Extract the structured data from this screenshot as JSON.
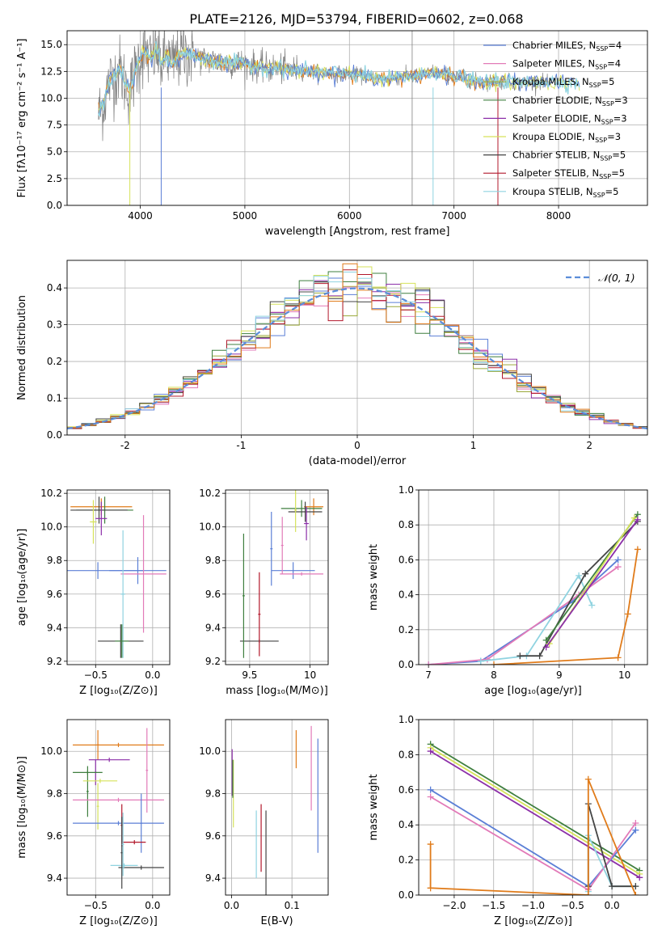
{
  "figure": {
    "title": "PLATE=2126, MJD=53794, FIBERID=0602, z=0.068"
  },
  "colors": {
    "Chabrier MILES": "#5b7fd6",
    "Salpeter MILES": "#e27ab8",
    "Kroupa MILES": "#9aa83a",
    "Chabrier ELODIE": "#3f7f3f",
    "Salpeter ELODIE": "#8c2fa8",
    "Kroupa ELODIE": "#d6e25a",
    "Chabrier STELIB": "#444444",
    "Salpeter STELIB": "#b2182b",
    "Kroupa STELIB": "#8fd3e0",
    "Orange": "#e07b1a",
    "Data": "#808080",
    "Normal": "#5b8dd9"
  },
  "chart_data": [
    {
      "id": "spectrum",
      "type": "line",
      "xlabel": "wavelength [Angstrom, rest frame]",
      "ylabel": "Flux [fλ10⁻¹⁷ erg cm⁻² s⁻¹ A⁻¹]",
      "xlim": [
        3300,
        8850
      ],
      "ylim": [
        0,
        16.3
      ],
      "xticks": [
        4000,
        5000,
        6000,
        7000,
        8000
      ],
      "yticks": [
        0.0,
        2.5,
        5.0,
        7.5,
        10.0,
        12.5,
        15.0
      ],
      "legend": "upper-right",
      "legend_entries": [
        {
          "label": "Chabrier MILES, N",
          "sub": "SSP",
          "tail": "=4",
          "color": "Chabrier MILES"
        },
        {
          "label": "Salpeter MILES, N",
          "sub": "SSP",
          "tail": "=4",
          "color": "Salpeter MILES"
        },
        {
          "label": "Kroupa MILES, N",
          "sub": "SSP",
          "tail": "=5",
          "color": "Kroupa MILES"
        },
        {
          "label": "Chabrier ELODIE, N",
          "sub": "SSP",
          "tail": "=3",
          "color": "Chabrier ELODIE"
        },
        {
          "label": "Salpeter ELODIE, N",
          "sub": "SSP",
          "tail": "=3",
          "color": "Salpeter ELODIE"
        },
        {
          "label": "Kroupa ELODIE, N",
          "sub": "SSP",
          "tail": "=3",
          "color": "Kroupa ELODIE"
        },
        {
          "label": "Chabrier STELIB, N",
          "sub": "SSP",
          "tail": "=5",
          "color": "Chabrier STELIB"
        },
        {
          "label": "Salpeter STELIB, N",
          "sub": "SSP",
          "tail": "=5",
          "color": "Salpeter STELIB"
        },
        {
          "label": "Kroupa STELIB, N",
          "sub": "SSP",
          "tail": "=5",
          "color": "Kroupa STELIB"
        }
      ],
      "model_x": [
        3600,
        3650,
        3700,
        3750,
        3800,
        3850,
        3900,
        3950,
        4000,
        4050,
        4100,
        4150,
        4200,
        4250,
        4300,
        4350,
        4400,
        4500,
        4600,
        4700,
        4800,
        4900,
        5000,
        5100,
        5200,
        5300,
        5400,
        5500,
        5600,
        5700,
        5800,
        5900,
        6000,
        6100,
        6200,
        6300,
        6400,
        6500,
        6600,
        6700,
        6800,
        6900,
        7000,
        7100,
        7200,
        7300,
        7400,
        7500,
        7600,
        7700,
        7800,
        7900,
        8000,
        8100,
        8200,
        8300,
        8400,
        8500,
        8600,
        8700,
        8800
      ],
      "model_y": [
        8.5,
        9.5,
        11.5,
        12.0,
        12.8,
        11.5,
        10.5,
        12.5,
        14.0,
        14.3,
        13.5,
        14.5,
        13.2,
        14.0,
        13.0,
        13.8,
        14.2,
        14.0,
        13.6,
        13.5,
        13.3,
        13.3,
        13.2,
        13.0,
        12.8,
        12.8,
        12.7,
        12.6,
        12.5,
        12.4,
        12.4,
        12.3,
        12.3,
        12.1,
        12.0,
        11.8,
        11.8,
        12.0,
        12.0,
        12.1,
        12.5,
        12.3,
        12.0,
        11.9,
        11.6,
        11.6,
        11.5,
        11.6,
        11.4,
        11.5,
        11.6,
        11.5,
        11.6,
        11.4,
        11.3,
        11.3,
        11.2,
        11.2,
        11.0,
        10.9,
        10.8
      ]
    },
    {
      "id": "residuals",
      "type": "line",
      "xlabel": "(data-model)/error",
      "ylabel": "Normed distribution",
      "xlim": [
        -2.5,
        2.5
      ],
      "ylim": [
        0,
        0.475
      ],
      "xticks": [
        -2,
        -1,
        0,
        1,
        2
      ],
      "yticks": [
        0.0,
        0.1,
        0.2,
        0.3,
        0.4
      ],
      "legend": "upper-right",
      "legend_entries": [
        {
          "label": "𝒩(0, 1)",
          "color": "Normal"
        }
      ]
    },
    {
      "id": "age-vs-Z",
      "type": "scatter",
      "xlabel": "Z [log₁₀(Z/Z⊙)]",
      "ylabel": "age  [log₁₀(age/yr)]",
      "xlim": [
        -0.75,
        0.15
      ],
      "ylim": [
        9.18,
        10.22
      ],
      "xticks": [
        -0.5,
        0.0
      ],
      "xticklabels": [
        "−0.5",
        "0.0"
      ],
      "yticks": [
        9.2,
        9.4,
        9.6,
        9.8,
        10.0,
        10.2
      ],
      "points": [
        {
          "x": -0.45,
          "y": 10.12,
          "dx": 0.27,
          "dy": 0.05,
          "color": "Orange"
        },
        {
          "x": -0.42,
          "y": 10.1,
          "dx": 0.25,
          "dy": 0.08,
          "color": "Chabrier ELODIE"
        },
        {
          "x": -0.47,
          "y": 10.1,
          "dx": 0.25,
          "dy": 0.08,
          "color": "Chabrier STELIB"
        },
        {
          "x": -0.45,
          "y": 10.05,
          "dx": 0.05,
          "dy": 0.1,
          "color": "Salpeter ELODIE"
        },
        {
          "x": -0.52,
          "y": 10.03,
          "dx": 0.03,
          "dy": 0.13,
          "color": "Kroupa ELODIE"
        },
        {
          "x": -0.48,
          "y": 9.74,
          "dx": 0.4,
          "dy": 0.05,
          "color": "Chabrier MILES"
        },
        {
          "x": -0.13,
          "y": 9.74,
          "dx": 0.25,
          "dy": 0.08,
          "color": "Chabrier MILES"
        },
        {
          "x": -0.08,
          "y": 9.72,
          "dx": 0.2,
          "dy": 0.35,
          "color": "Salpeter MILES"
        },
        {
          "x": -0.28,
          "y": 9.32,
          "dx": 0.2,
          "dy": 0.1,
          "color": "Chabrier STELIB"
        },
        {
          "x": -0.26,
          "y": 9.6,
          "dx": 0.02,
          "dy": 0.38,
          "color": "Kroupa STELIB"
        },
        {
          "x": -0.27,
          "y": 9.32,
          "dx": 0.06,
          "dy": 0.1,
          "color": "Chabrier ELODIE"
        }
      ]
    },
    {
      "id": "age-vs-mass",
      "type": "scatter",
      "xlabel": "mass [log₁₀(M/M⊙)]",
      "ylabel": "",
      "xlim": [
        9.3,
        10.15
      ],
      "ylim": [
        9.18,
        10.22
      ],
      "xticks": [
        9.5,
        10.0
      ],
      "yticks": [
        9.2,
        9.4,
        9.6,
        9.8,
        10.0,
        10.2
      ],
      "points": [
        {
          "x": 10.03,
          "y": 10.12,
          "dx": 0.08,
          "dy": 0.05,
          "color": "Orange"
        },
        {
          "x": 9.93,
          "y": 10.11,
          "dx": 0.17,
          "dy": 0.05,
          "color": "Chabrier ELODIE"
        },
        {
          "x": 9.96,
          "y": 10.09,
          "dx": 0.14,
          "dy": 0.06,
          "color": "Chabrier STELIB"
        },
        {
          "x": 9.97,
          "y": 10.02,
          "dx": 0.02,
          "dy": 0.1,
          "color": "Salpeter ELODIE"
        },
        {
          "x": 9.88,
          "y": 10.1,
          "dx": 0.01,
          "dy": 0.13,
          "color": "Kroupa ELODIE"
        },
        {
          "x": 9.86,
          "y": 9.74,
          "dx": 0.18,
          "dy": 0.05,
          "color": "Chabrier MILES"
        },
        {
          "x": 9.68,
          "y": 9.87,
          "dx": 0.01,
          "dy": 0.22,
          "color": "Chabrier MILES"
        },
        {
          "x": 9.93,
          "y": 9.72,
          "dx": 0.18,
          "dy": 0.01,
          "color": "Salpeter MILES"
        },
        {
          "x": 9.77,
          "y": 9.89,
          "dx": 0.01,
          "dy": 0.17,
          "color": "Salpeter MILES"
        },
        {
          "x": 9.58,
          "y": 9.32,
          "dx": 0.16,
          "dy": 0.01,
          "color": "Chabrier STELIB"
        },
        {
          "x": 9.45,
          "y": 9.59,
          "dx": 0.01,
          "dy": 0.37,
          "color": "Chabrier ELODIE"
        },
        {
          "x": 9.58,
          "y": 9.48,
          "dx": 0.01,
          "dy": 0.25,
          "color": "Salpeter STELIB"
        }
      ]
    },
    {
      "id": "weight-vs-age",
      "type": "line",
      "xlabel": "age  [log₁₀(age/yr)]",
      "ylabel": "mass weight",
      "xlim": [
        6.85,
        10.35
      ],
      "ylim": [
        0,
        1.0
      ],
      "xticks": [
        7,
        8,
        9,
        10
      ],
      "yticks": [
        0.0,
        0.2,
        0.4,
        0.6,
        0.8,
        1.0
      ],
      "series": [
        {
          "color": "Chabrier MILES",
          "x": [
            7.0,
            7.8,
            9.2,
            9.9
          ],
          "y": [
            0.0,
            0.02,
            0.36,
            0.6
          ]
        },
        {
          "color": "Salpeter MILES",
          "x": [
            7.0,
            7.9,
            9.3,
            9.9
          ],
          "y": [
            0.0,
            0.03,
            0.4,
            0.56
          ]
        },
        {
          "color": "Kroupa STELIB",
          "x": [
            7.8,
            8.5,
            9.3,
            9.5
          ],
          "y": [
            0.02,
            0.05,
            0.51,
            0.34
          ]
        },
        {
          "color": "Chabrier STELIB",
          "x": [
            8.4,
            8.7,
            9.4,
            10.2
          ],
          "y": [
            0.05,
            0.05,
            0.52,
            0.82
          ]
        },
        {
          "color": "Chabrier ELODIE",
          "x": [
            8.8,
            10.2
          ],
          "y": [
            0.14,
            0.86
          ]
        },
        {
          "color": "Kroupa ELODIE",
          "x": [
            8.85,
            10.15
          ],
          "y": [
            0.12,
            0.84
          ]
        },
        {
          "color": "Salpeter ELODIE",
          "x": [
            8.8,
            10.2
          ],
          "y": [
            0.1,
            0.83
          ]
        },
        {
          "color": "Orange",
          "x": [
            8.0,
            9.9,
            10.05,
            10.2
          ],
          "y": [
            0.0,
            0.04,
            0.29,
            0.66
          ]
        }
      ]
    },
    {
      "id": "mass-vs-Z",
      "type": "scatter",
      "xlabel": "Z [log₁₀(Z/Z⊙)]",
      "ylabel": "mass [log₁₀(M/M⊙)]",
      "xlim": [
        -0.75,
        0.15
      ],
      "ylim": [
        9.32,
        10.15
      ],
      "xticks": [
        -0.5,
        0.0
      ],
      "xticklabels": [
        "−0.5",
        "0.0"
      ],
      "yticks": [
        9.4,
        9.6,
        9.8,
        10.0
      ],
      "points": [
        {
          "x": -0.3,
          "y": 10.03,
          "dx": 0.4,
          "dy": 0.01,
          "color": "Orange"
        },
        {
          "x": -0.48,
          "y": 10.03,
          "dx": 0.01,
          "dy": 0.07,
          "color": "Orange"
        },
        {
          "x": -0.38,
          "y": 9.96,
          "dx": 0.18,
          "dy": 0.01,
          "color": "Salpeter ELODIE"
        },
        {
          "x": -0.5,
          "y": 9.9,
          "dx": 0.01,
          "dy": 0.06,
          "color": "Salpeter ELODIE"
        },
        {
          "x": -0.57,
          "y": 9.9,
          "dx": 0.13,
          "dy": 0.01,
          "color": "Chabrier ELODIE"
        },
        {
          "x": -0.57,
          "y": 9.81,
          "dx": 0.01,
          "dy": 0.12,
          "color": "Chabrier ELODIE"
        },
        {
          "x": -0.46,
          "y": 9.86,
          "dx": 0.15,
          "dy": 0.01,
          "color": "Kroupa ELODIE"
        },
        {
          "x": -0.48,
          "y": 9.74,
          "dx": 0.01,
          "dy": 0.11,
          "color": "Kroupa ELODIE"
        },
        {
          "x": -0.3,
          "y": 9.77,
          "dx": 0.4,
          "dy": 0.01,
          "color": "Salpeter MILES"
        },
        {
          "x": -0.05,
          "y": 9.91,
          "dx": 0.01,
          "dy": 0.2,
          "color": "Salpeter MILES"
        },
        {
          "x": -0.3,
          "y": 9.66,
          "dx": 0.4,
          "dy": 0.01,
          "color": "Chabrier MILES"
        },
        {
          "x": -0.1,
          "y": 9.66,
          "dx": 0.01,
          "dy": 0.14,
          "color": "Chabrier MILES"
        },
        {
          "x": -0.27,
          "y": 9.65,
          "dx": 0.01,
          "dy": 0.1,
          "color": "Salpeter STELIB"
        },
        {
          "x": -0.16,
          "y": 9.57,
          "dx": 0.1,
          "dy": 0.01,
          "color": "Salpeter STELIB"
        },
        {
          "x": -0.1,
          "y": 9.45,
          "dx": 0.2,
          "dy": 0.01,
          "color": "Chabrier STELIB"
        },
        {
          "x": -0.25,
          "y": 9.46,
          "dx": 0.12,
          "dy": 0.01,
          "color": "Kroupa STELIB"
        },
        {
          "x": -0.27,
          "y": 9.52,
          "dx": 0.01,
          "dy": 0.17,
          "color": "Chabrier STELIB"
        },
        {
          "x": -0.26,
          "y": 9.56,
          "dx": 0.01,
          "dy": 0.15,
          "color": "Kroupa STELIB"
        }
      ]
    },
    {
      "id": "mass-vs-ebv",
      "type": "scatter",
      "xlabel": "E(B-V)",
      "ylabel": "",
      "xlim": [
        -0.01,
        0.16
      ],
      "ylim": [
        9.32,
        10.15
      ],
      "xticks": [
        0.0,
        0.1
      ],
      "xticklabels": [
        "0.0",
        "0.1"
      ],
      "yticks": [
        9.4,
        9.6,
        9.8,
        10.0
      ],
      "points": [
        {
          "x": 0.107,
          "y": 10.01,
          "dx": 0.0,
          "dy": 0.09,
          "color": "Orange"
        },
        {
          "x": 0.143,
          "y": 9.79,
          "dx": 0.0,
          "dy": 0.27,
          "color": "Chabrier MILES"
        },
        {
          "x": 0.132,
          "y": 9.92,
          "dx": 0.0,
          "dy": 0.2,
          "color": "Salpeter MILES"
        },
        {
          "x": 0.001,
          "y": 9.9,
          "dx": 0.0,
          "dy": 0.11,
          "color": "Salpeter ELODIE"
        },
        {
          "x": 0.003,
          "y": 9.8,
          "dx": 0.0,
          "dy": 0.16,
          "color": "Kroupa ELODIE"
        },
        {
          "x": 0.002,
          "y": 9.87,
          "dx": 0.0,
          "dy": 0.09,
          "color": "Chabrier ELODIE"
        },
        {
          "x": 0.041,
          "y": 9.56,
          "dx": 0.0,
          "dy": 0.16,
          "color": "Kroupa STELIB"
        },
        {
          "x": 0.049,
          "y": 9.59,
          "dx": 0.0,
          "dy": 0.16,
          "color": "Salpeter STELIB"
        },
        {
          "x": 0.057,
          "y": 9.52,
          "dx": 0.0,
          "dy": 0.2,
          "color": "Chabrier STELIB"
        }
      ]
    },
    {
      "id": "weight-vs-Z",
      "type": "line",
      "xlabel": "Z [log₁₀(Z/Z⊙)]",
      "ylabel": "mass weight",
      "xlim": [
        -2.45,
        0.45
      ],
      "ylim": [
        0,
        1.0
      ],
      "xticks": [
        -2.0,
        -1.5,
        -1.0,
        -0.5,
        0.0
      ],
      "xticklabels": [
        "−2.0",
        "−1.5",
        "−1.0",
        "−0.5",
        "0.0"
      ],
      "yticks": [
        0.0,
        0.2,
        0.4,
        0.6,
        0.8,
        1.0
      ],
      "series": [
        {
          "color": "Chabrier ELODIE",
          "x": [
            -2.3,
            0.35
          ],
          "y": [
            0.86,
            0.14
          ]
        },
        {
          "color": "Kroupa ELODIE",
          "x": [
            -2.3,
            0.35
          ],
          "y": [
            0.84,
            0.12
          ]
        },
        {
          "color": "Salpeter ELODIE",
          "x": [
            -2.3,
            0.35
          ],
          "y": [
            0.82,
            0.1
          ]
        },
        {
          "color": "Chabrier MILES",
          "x": [
            -2.3,
            -0.3,
            0.3
          ],
          "y": [
            0.6,
            0.05,
            0.37
          ]
        },
        {
          "color": "Salpeter MILES",
          "x": [
            -2.3,
            -0.3,
            0.3
          ],
          "y": [
            0.56,
            0.03,
            0.41
          ]
        },
        {
          "color": "Kroupa STELIB",
          "x": [
            -0.3,
            -0.3,
            0.0,
            0.3
          ],
          "y": [
            0.02,
            0.34,
            0.05,
            0.05
          ]
        },
        {
          "color": "Chabrier STELIB",
          "x": [
            -0.3,
            -0.3,
            0.0,
            0.3
          ],
          "y": [
            0.05,
            0.52,
            0.05,
            0.05
          ]
        },
        {
          "color": "Orange",
          "x": [
            -2.3,
            -2.3,
            -0.3,
            -0.3,
            0.3
          ],
          "y": [
            0.29,
            0.04,
            0.0,
            0.66,
            0.0
          ]
        }
      ]
    }
  ]
}
